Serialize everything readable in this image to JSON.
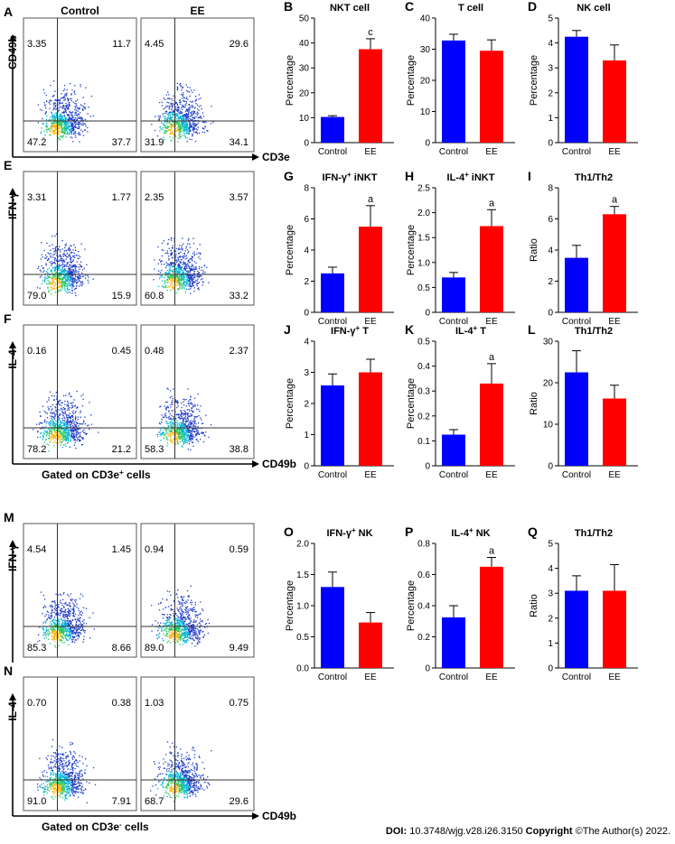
{
  "flow_panels": [
    {
      "letter": "A",
      "x_axis": "CD3e",
      "y_axis": "CD49b",
      "footer": "",
      "footer_sup": "",
      "plots": [
        {
          "title": "Control",
          "quadrants": [
            "3.35",
            "11.7",
            "47.2",
            "37.7"
          ]
        },
        {
          "title": "EE",
          "quadrants": [
            "4.45",
            "29.6",
            "31.9",
            "34.1"
          ]
        }
      ]
    },
    {
      "letter": "E",
      "x_axis": "",
      "y_axis": "IFN-γ",
      "footer": "",
      "footer_sup": "",
      "plots": [
        {
          "title": "",
          "quadrants": [
            "3.31",
            "1.77",
            "79.0",
            "15.9"
          ]
        },
        {
          "title": "",
          "quadrants": [
            "2.35",
            "3.57",
            "60.8",
            "33.2"
          ]
        }
      ]
    },
    {
      "letter": "F",
      "x_axis": "CD49b",
      "y_axis": "IL-4",
      "footer": "Gated on CD3e",
      "footer_sup": "+",
      "footer_end": " cells",
      "plots": [
        {
          "title": "",
          "quadrants": [
            "0.16",
            "0.45",
            "78.2",
            "21.2"
          ]
        },
        {
          "title": "",
          "quadrants": [
            "0.48",
            "2.37",
            "58.3",
            "38.8"
          ]
        }
      ]
    },
    {
      "letter": "M",
      "x_axis": "",
      "y_axis": "IFN-γ",
      "footer": "",
      "footer_sup": "",
      "plots": [
        {
          "title": "",
          "quadrants": [
            "4.54",
            "1.45",
            "85.3",
            "8.66"
          ]
        },
        {
          "title": "",
          "quadrants": [
            "0.94",
            "0.59",
            "89.0",
            "9.49"
          ]
        }
      ]
    },
    {
      "letter": "N",
      "x_axis": "CD49b",
      "y_axis": "IL-4",
      "footer": "Gated on CD3e",
      "footer_sup": "-",
      "footer_end": " cells",
      "plots": [
        {
          "title": "",
          "quadrants": [
            "0.70",
            "0.38",
            "91.0",
            "7.91"
          ]
        },
        {
          "title": "",
          "quadrants": [
            "1.03",
            "0.75",
            "68.7",
            "29.6"
          ]
        }
      ]
    }
  ],
  "chart_data": [
    {
      "letter": "B",
      "type": "bar",
      "title": "NKT cell",
      "title_sup": "",
      "title_end": "",
      "ylabel": "Percentage",
      "categories": [
        "Control",
        "EE"
      ],
      "values": [
        10.3,
        37.5
      ],
      "errors": [
        0.5,
        4.2
      ],
      "ylim": [
        0,
        50
      ],
      "ticks": [
        "0",
        "10",
        "20",
        "30",
        "40",
        "50"
      ],
      "significance": [
        "",
        "c"
      ]
    },
    {
      "letter": "C",
      "type": "bar",
      "title": "T cell",
      "title_sup": "",
      "title_end": "",
      "ylabel": "Percentage",
      "categories": [
        "Control",
        "EE"
      ],
      "values": [
        32.8,
        29.5
      ],
      "errors": [
        2.0,
        3.5
      ],
      "ylim": [
        0,
        40
      ],
      "ticks": [
        "0",
        "10",
        "20",
        "30",
        "40"
      ],
      "significance": [
        "",
        ""
      ]
    },
    {
      "letter": "D",
      "type": "bar",
      "title": "NK cell",
      "title_sup": "",
      "title_end": "",
      "ylabel": "Percentage",
      "categories": [
        "Control",
        "EE"
      ],
      "values": [
        4.25,
        3.3
      ],
      "errors": [
        0.25,
        0.62
      ],
      "ylim": [
        0,
        5
      ],
      "ticks": [
        "0",
        "1",
        "2",
        "3",
        "4",
        "5"
      ],
      "significance": [
        "",
        ""
      ]
    },
    {
      "letter": "G",
      "type": "bar",
      "title": "IFN-γ",
      "title_sup": "+",
      "title_end": " iNKT",
      "ylabel": "Percentage",
      "categories": [
        "Control",
        "EE"
      ],
      "values": [
        2.5,
        5.5
      ],
      "errors": [
        0.4,
        1.35
      ],
      "ylim": [
        0,
        8
      ],
      "ticks": [
        "0",
        "2",
        "4",
        "6",
        "8"
      ],
      "significance": [
        "",
        "a"
      ]
    },
    {
      "letter": "H",
      "type": "bar",
      "title": "IL-4",
      "title_sup": "+",
      "title_end": " iNKT",
      "ylabel": "Percentage",
      "categories": [
        "Control",
        "EE"
      ],
      "values": [
        0.7,
        1.73
      ],
      "errors": [
        0.1,
        0.33
      ],
      "ylim": [
        0,
        2.5
      ],
      "ticks": [
        "0",
        "0.5",
        "1.0",
        "1.5",
        "2.0",
        "2.5"
      ],
      "significance": [
        "",
        "a"
      ]
    },
    {
      "letter": "I",
      "type": "bar",
      "title": "Th1/Th2",
      "title_sup": "",
      "title_end": "",
      "ylabel": "Ratio",
      "categories": [
        "Control",
        "EE"
      ],
      "values": [
        3.5,
        6.3
      ],
      "errors": [
        0.8,
        0.5
      ],
      "ylim": [
        0,
        8
      ],
      "ticks": [
        "0",
        "2",
        "4",
        "6",
        "8"
      ],
      "significance": [
        "",
        "a"
      ]
    },
    {
      "letter": "J",
      "type": "bar",
      "title": "IFN-γ",
      "title_sup": "+",
      "title_end": " T",
      "ylabel": "Percentage",
      "categories": [
        "Control",
        "EE"
      ],
      "values": [
        2.58,
        3.0
      ],
      "errors": [
        0.37,
        0.42
      ],
      "ylim": [
        0,
        4
      ],
      "ticks": [
        "0",
        "1",
        "2",
        "3",
        "4"
      ],
      "significance": [
        "",
        ""
      ]
    },
    {
      "letter": "K",
      "type": "bar",
      "title": "IL-4",
      "title_sup": "+",
      "title_end": " T",
      "ylabel": "Percentage",
      "categories": [
        "Control",
        "EE"
      ],
      "values": [
        0.125,
        0.33
      ],
      "errors": [
        0.02,
        0.08
      ],
      "ylim": [
        0,
        0.5
      ],
      "ticks": [
        "0",
        "0.1",
        "0.2",
        "0.3",
        "0.4",
        "0.5"
      ],
      "significance": [
        "",
        "a"
      ]
    },
    {
      "letter": "L",
      "type": "bar",
      "title": "Th1/Th2",
      "title_sup": "",
      "title_end": "",
      "ylabel": "Ratio",
      "categories": [
        "Control",
        "EE"
      ],
      "values": [
        22.5,
        16.2
      ],
      "errors": [
        5.2,
        3.2
      ],
      "ylim": [
        0,
        30
      ],
      "ticks": [
        "0",
        "10",
        "20",
        "30"
      ],
      "significance": [
        "",
        ""
      ]
    },
    {
      "letter": "O",
      "type": "bar",
      "title": "IFN-γ",
      "title_sup": "+",
      "title_end": " NK",
      "ylabel": "Percentage",
      "categories": [
        "Control",
        "EE"
      ],
      "values": [
        1.3,
        0.73
      ],
      "errors": [
        0.24,
        0.16
      ],
      "ylim": [
        0,
        2.0
      ],
      "ticks": [
        "0.0",
        "0.5",
        "1.0",
        "1.5",
        "2.0"
      ],
      "significance": [
        "",
        ""
      ]
    },
    {
      "letter": "P",
      "type": "bar",
      "title": "IL-4",
      "title_sup": "+",
      "title_end": " NK",
      "ylabel": "Percentage",
      "categories": [
        "Control",
        "EE"
      ],
      "values": [
        0.325,
        0.65
      ],
      "errors": [
        0.075,
        0.06
      ],
      "ylim": [
        0,
        0.8
      ],
      "ticks": [
        "0",
        "0.2",
        "0.4",
        "0.6",
        "0.8"
      ],
      "significance": [
        "",
        "a"
      ]
    },
    {
      "letter": "Q",
      "type": "bar",
      "title": "Th1/Th2",
      "title_sup": "",
      "title_end": "",
      "ylabel": "Ratio",
      "categories": [
        "Control",
        "EE"
      ],
      "values": [
        3.1,
        3.1
      ],
      "errors": [
        0.6,
        1.05
      ],
      "ylim": [
        0,
        5
      ],
      "ticks": [
        "0",
        "1",
        "2",
        "3",
        "4",
        "5"
      ],
      "significance": [
        "",
        ""
      ]
    }
  ],
  "colors": {
    "control": "#0000ff",
    "ee": "#ff0000"
  },
  "footer": {
    "doi_label": "DOI:",
    "doi_value": " 10.3748/wjg.v28.i26.3150 ",
    "copyright_label": "Copyright",
    "copyright_value": " ©The Author(s) 2022."
  }
}
